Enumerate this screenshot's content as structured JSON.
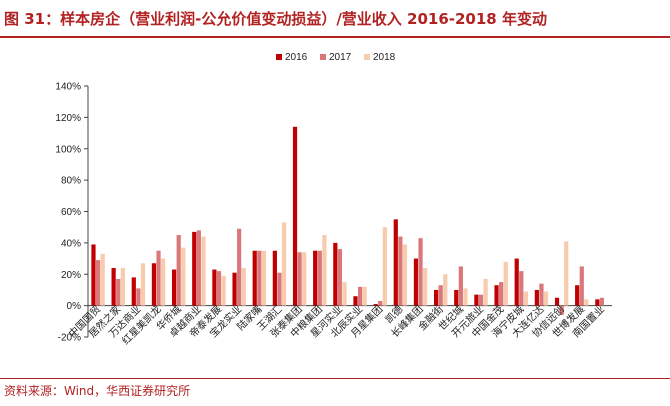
{
  "header": {
    "title": "图 31：样本房企（营业利润-公允价值变动损益）/营业收入 2016-2018 年变动"
  },
  "footer": {
    "source": "资料来源：Wind，华西证券研究所"
  },
  "colors": {
    "accent": "#b22222",
    "s2016": "#c00000",
    "s2017": "#d9777a",
    "s2018": "#f8cbad"
  },
  "chart_data": {
    "type": "bar",
    "title": "",
    "xlabel": "",
    "ylabel": "",
    "ylim": [
      -20,
      140
    ],
    "yticks": [
      "-20%",
      "0%",
      "20%",
      "40%",
      "60%",
      "80%",
      "100%",
      "120%",
      "140%"
    ],
    "legend_position": "top-center",
    "grid": false,
    "categories": [
      "中国国贸",
      "居然之家",
      "万达商业",
      "红星美凯龙",
      "华侨城",
      "卓越商业",
      "帝泰发展",
      "宝龙实业",
      "陆家嘴",
      "王湖汇",
      "张泰集团",
      "中粮集团",
      "星河实业",
      "北辰实业",
      "月星集团",
      "凯德",
      "长峰集团",
      "金融街",
      "世纪城",
      "开元旅业",
      "中国金茂",
      "海宁皮城",
      "大连亿达",
      "协信远创",
      "世博发展",
      "南国置业"
    ],
    "series": [
      {
        "name": "2016",
        "values": [
          39,
          24,
          18,
          27,
          23,
          47,
          23,
          21,
          35,
          35,
          114,
          35,
          40,
          6,
          1,
          55,
          30,
          10,
          10,
          7,
          13,
          30,
          10,
          5,
          13,
          4
        ]
      },
      {
        "name": "2017",
        "values": [
          29,
          17,
          11,
          35,
          45,
          48,
          22,
          49,
          35,
          21,
          34,
          35,
          36,
          12,
          3,
          44,
          43,
          13,
          25,
          7,
          15,
          22,
          14,
          -6,
          25,
          5
        ]
      },
      {
        "name": "2018",
        "values": [
          33,
          24,
          27,
          30,
          37,
          44,
          19,
          24,
          35,
          53,
          34,
          45,
          15,
          12,
          50,
          39,
          24,
          20,
          11,
          17,
          28,
          9,
          9,
          41,
          4,
          null
        ]
      }
    ]
  }
}
